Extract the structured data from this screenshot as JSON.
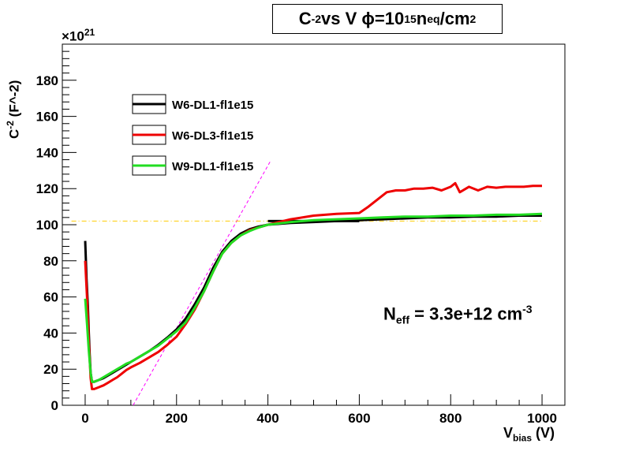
{
  "chart_data": {
    "type": "line",
    "title": {
      "main": "C",
      "main_sup": "-2",
      "mid": " vs V ϕ=10",
      "mid_sup": "15",
      "n": "n",
      "n_sub": "eq",
      "end": "/cm",
      "end_sup": "2"
    },
    "y_exponent": {
      "base": "×10",
      "power": "21"
    },
    "ylabel": {
      "c": "C",
      "sup": "-2",
      "rest": " (F^-2)"
    },
    "xlabel": {
      "v": "V",
      "sub": "bias",
      "rest": " (V)"
    },
    "annotation": {
      "n": "N",
      "sub": "eff",
      "mid": " = 3.3e+12 cm",
      "sup": "-3"
    },
    "xlim": [
      -50,
      1050
    ],
    "ylim": [
      0,
      200
    ],
    "xticks": [
      0,
      200,
      400,
      600,
      800,
      1000
    ],
    "yticks": [
      0,
      20,
      40,
      60,
      80,
      100,
      120,
      140,
      160,
      180
    ],
    "series": [
      {
        "name": "W6-DL1-fl1e15",
        "color": "#000000",
        "points": [
          [
            0,
            91
          ],
          [
            3,
            70
          ],
          [
            6,
            55
          ],
          [
            8,
            40
          ],
          [
            10,
            28
          ],
          [
            12,
            18
          ],
          [
            15,
            13
          ],
          [
            20,
            13
          ],
          [
            30,
            14
          ],
          [
            40,
            15
          ],
          [
            50,
            16.5
          ],
          [
            60,
            18
          ],
          [
            70,
            19.5
          ],
          [
            80,
            21
          ],
          [
            90,
            22.5
          ],
          [
            100,
            24
          ],
          [
            120,
            27
          ],
          [
            140,
            30
          ],
          [
            160,
            33.5
          ],
          [
            180,
            37.5
          ],
          [
            200,
            42
          ],
          [
            220,
            48
          ],
          [
            240,
            56
          ],
          [
            260,
            65
          ],
          [
            280,
            76
          ],
          [
            300,
            85
          ],
          [
            320,
            91
          ],
          [
            340,
            95
          ],
          [
            360,
            97.5
          ],
          [
            380,
            99
          ],
          [
            400,
            100
          ],
          [
            450,
            101
          ],
          [
            500,
            101.5
          ],
          [
            550,
            102
          ],
          [
            600,
            102.5
          ],
          [
            650,
            103
          ],
          [
            700,
            103.5
          ],
          [
            750,
            104
          ],
          [
            800,
            104
          ],
          [
            850,
            104.5
          ],
          [
            900,
            104.5
          ],
          [
            950,
            105
          ],
          [
            1000,
            105
          ]
        ]
      },
      {
        "name": "W6-DL3-fl1e15",
        "color": "#ee0000",
        "points": [
          [
            0,
            80
          ],
          [
            4,
            60
          ],
          [
            8,
            35
          ],
          [
            12,
            15
          ],
          [
            15,
            9
          ],
          [
            20,
            9
          ],
          [
            30,
            10
          ],
          [
            40,
            11
          ],
          [
            50,
            12.5
          ],
          [
            60,
            14
          ],
          [
            70,
            15.5
          ],
          [
            80,
            17.5
          ],
          [
            90,
            19.5
          ],
          [
            100,
            21
          ],
          [
            120,
            23.5
          ],
          [
            140,
            26.5
          ],
          [
            160,
            29.5
          ],
          [
            180,
            33.5
          ],
          [
            200,
            38
          ],
          [
            220,
            45
          ],
          [
            240,
            53
          ],
          [
            260,
            63
          ],
          [
            280,
            74
          ],
          [
            300,
            84
          ],
          [
            320,
            90
          ],
          [
            340,
            94
          ],
          [
            360,
            97
          ],
          [
            380,
            98.5
          ],
          [
            400,
            100
          ],
          [
            450,
            103
          ],
          [
            500,
            105
          ],
          [
            550,
            106
          ],
          [
            600,
            106.5
          ],
          [
            620,
            110
          ],
          [
            640,
            114
          ],
          [
            660,
            118
          ],
          [
            680,
            119
          ],
          [
            700,
            119
          ],
          [
            720,
            120
          ],
          [
            740,
            120
          ],
          [
            760,
            120.5
          ],
          [
            780,
            119
          ],
          [
            800,
            121
          ],
          [
            810,
            123
          ],
          [
            820,
            118
          ],
          [
            840,
            121
          ],
          [
            860,
            119
          ],
          [
            880,
            121
          ],
          [
            900,
            120.5
          ],
          [
            920,
            121
          ],
          [
            940,
            121
          ],
          [
            960,
            121
          ],
          [
            980,
            121.5
          ],
          [
            1000,
            121.5
          ]
        ]
      },
      {
        "name": "W9-DL1-fl1e15",
        "color": "#22dd22",
        "points": [
          [
            0,
            59
          ],
          [
            4,
            45
          ],
          [
            8,
            30
          ],
          [
            12,
            18
          ],
          [
            15,
            13
          ],
          [
            20,
            13
          ],
          [
            30,
            14
          ],
          [
            40,
            15.5
          ],
          [
            50,
            17
          ],
          [
            60,
            18.5
          ],
          [
            70,
            20
          ],
          [
            80,
            21.5
          ],
          [
            90,
            23
          ],
          [
            100,
            24
          ],
          [
            120,
            27
          ],
          [
            140,
            30
          ],
          [
            160,
            33
          ],
          [
            180,
            37
          ],
          [
            200,
            41
          ],
          [
            220,
            46
          ],
          [
            240,
            54
          ],
          [
            260,
            63
          ],
          [
            280,
            74
          ],
          [
            300,
            84
          ],
          [
            320,
            90
          ],
          [
            340,
            94
          ],
          [
            360,
            96.5
          ],
          [
            380,
            98.5
          ],
          [
            400,
            100
          ],
          [
            450,
            101.5
          ],
          [
            500,
            102.5
          ],
          [
            550,
            103
          ],
          [
            600,
            103.5
          ],
          [
            650,
            104
          ],
          [
            700,
            104.5
          ],
          [
            750,
            104.5
          ],
          [
            800,
            105
          ],
          [
            850,
            105
          ],
          [
            900,
            105.5
          ],
          [
            950,
            105.5
          ],
          [
            1000,
            106
          ]
        ]
      }
    ],
    "fit_lines": [
      {
        "color": "#ff00ff",
        "style": "dashed",
        "points": [
          [
            105,
            0
          ],
          [
            405,
            135
          ]
        ]
      },
      {
        "color": "#ffcc00",
        "style": "dash-dot",
        "points": [
          [
            -30,
            102
          ],
          [
            1000,
            102
          ]
        ]
      },
      {
        "color": "#000000",
        "style": "solid",
        "points": [
          [
            400,
            102
          ],
          [
            600,
            102
          ]
        ]
      }
    ]
  }
}
